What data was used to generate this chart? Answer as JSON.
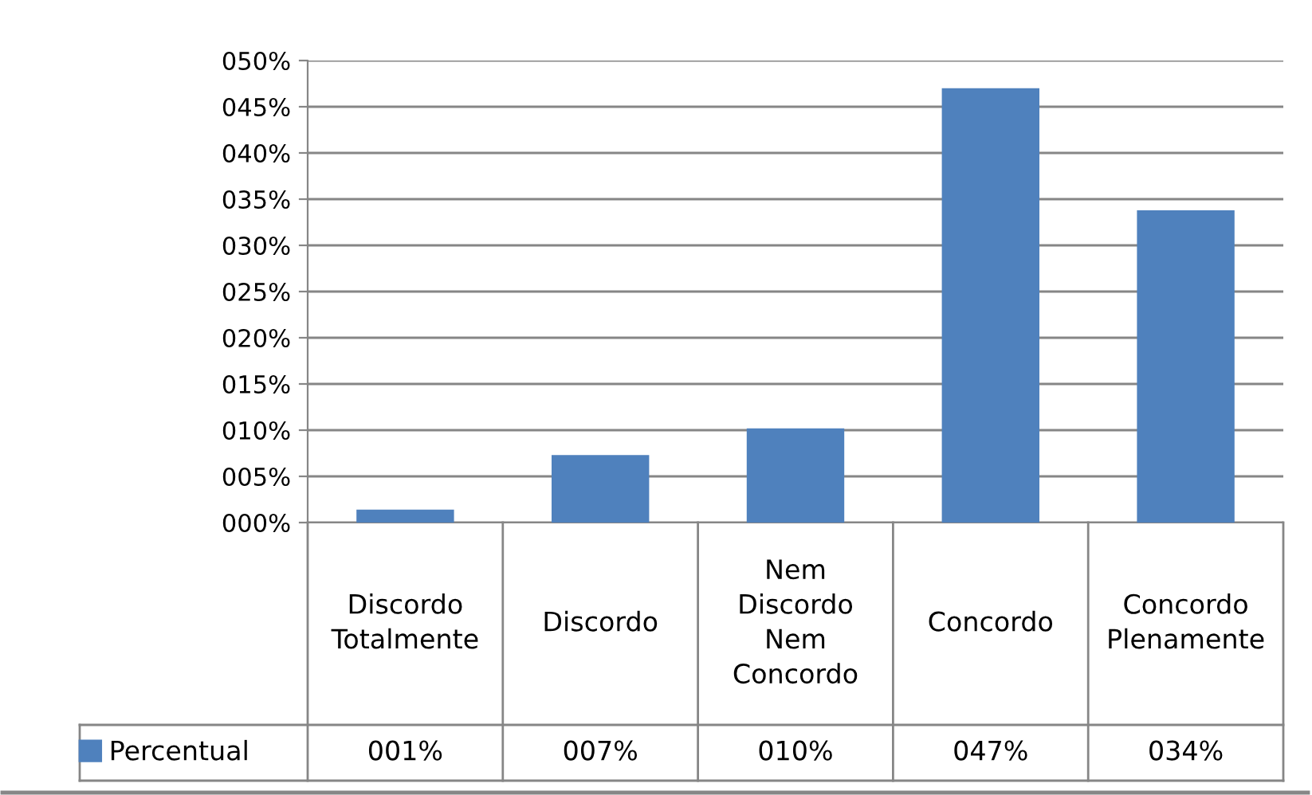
{
  "chart_data": {
    "type": "bar",
    "categories": [
      "Discordo Totalmente",
      "Discordo",
      "Nem Discordo Nem Concordo",
      "Concordo",
      "Concordo Plenamente"
    ],
    "series": [
      {
        "name": "Percentual",
        "color": "#4f81bd",
        "values": [
          1.4,
          7.3,
          10.2,
          47.0,
          33.8
        ],
        "value_labels": [
          "001%",
          "007%",
          "010%",
          "047%",
          "034%"
        ]
      }
    ],
    "ylim": [
      0,
      50
    ],
    "yticks": [
      {
        "value": 0,
        "label": "000%"
      },
      {
        "value": 5,
        "label": "005%"
      },
      {
        "value": 10,
        "label": "010%"
      },
      {
        "value": 15,
        "label": "015%"
      },
      {
        "value": 20,
        "label": "020%"
      },
      {
        "value": 25,
        "label": "025%"
      },
      {
        "value": 30,
        "label": "030%"
      },
      {
        "value": 35,
        "label": "035%"
      },
      {
        "value": 40,
        "label": "040%"
      },
      {
        "value": 45,
        "label": "045%"
      },
      {
        "value": 50,
        "label": "050%"
      }
    ],
    "grid": "y",
    "legend": "bottom left"
  }
}
